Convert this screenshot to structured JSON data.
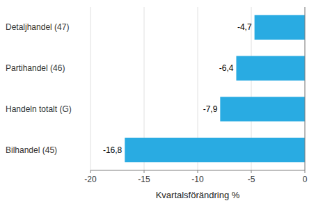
{
  "chart_data": {
    "type": "bar",
    "orientation": "horizontal",
    "categories": [
      "Bilhandel (45)",
      "Handeln totalt (G)",
      "Partihandel (46)",
      "Detaljhandel (47)"
    ],
    "values": [
      -16.8,
      -7.9,
      -6.4,
      -4.7
    ],
    "value_labels": [
      "-16,8",
      "-7,9",
      "-6,4",
      "-4,7"
    ],
    "data_labels": true,
    "color": "#29abe2",
    "xlabel": "Kvartalsförändring %",
    "xlim": [
      -20,
      0
    ],
    "xticks": [
      -20,
      -15,
      -10,
      -5,
      0
    ],
    "grid": true
  }
}
